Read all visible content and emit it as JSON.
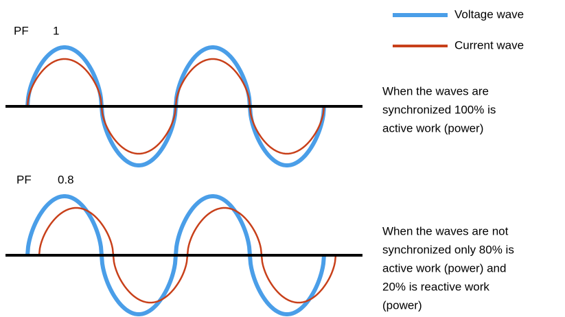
{
  "legend": [
    {
      "label": "Voltage wave",
      "color": "#4a9ee8"
    },
    {
      "label": "Current wave",
      "color": "#c8401a"
    }
  ],
  "panels": [
    {
      "label": "PF",
      "value": 1,
      "description": [
        "When the waves are",
        "synchronized 100% is",
        "active work (power)"
      ]
    },
    {
      "label": "PF",
      "value": 0.8,
      "description": [
        "When the waves are not",
        "synchronized only 80% is",
        "active work (power) and",
        "20% is reactive work",
        "(power)"
      ]
    }
  ]
}
